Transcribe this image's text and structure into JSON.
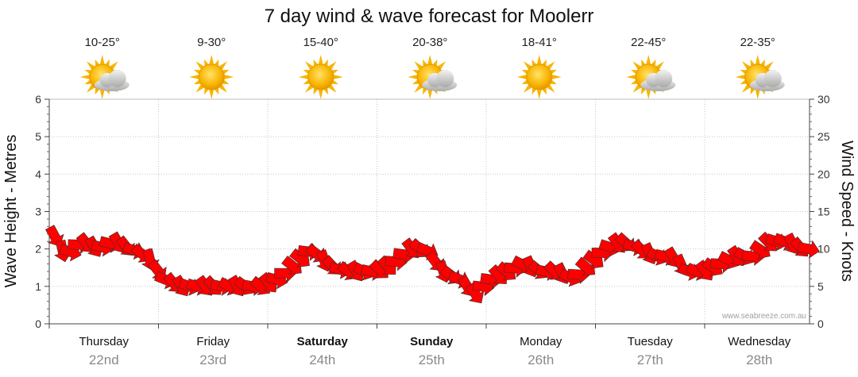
{
  "chart_data": {
    "type": "line",
    "title": "7 day wind & wave forecast for Moolerr",
    "ylabel_left": "Wave Height - Metres",
    "ylabel_right": "Wind Speed - Knots",
    "ylim_left": [
      0,
      6
    ],
    "ylim_right": [
      0,
      30
    ],
    "yticks_left": [
      "0",
      "1",
      "2",
      "3",
      "4",
      "5",
      "6"
    ],
    "yticks_right": [
      "0",
      "5",
      "10",
      "15",
      "20",
      "25",
      "30"
    ],
    "watermark": "www.seabreeze.com.au",
    "days": [
      {
        "name": "Thursday",
        "date": "22nd",
        "temp": "10-25°",
        "icon": "partly-cloudy-icon",
        "bold": false
      },
      {
        "name": "Friday",
        "date": "23rd",
        "temp": "9-30°",
        "icon": "sunny-icon",
        "bold": false
      },
      {
        "name": "Saturday",
        "date": "24th",
        "temp": "15-40°",
        "icon": "sunny-icon",
        "bold": true
      },
      {
        "name": "Sunday",
        "date": "25th",
        "temp": "20-38°",
        "icon": "partly-cloudy-icon",
        "bold": true
      },
      {
        "name": "Monday",
        "date": "26th",
        "temp": "18-41°",
        "icon": "sunny-icon",
        "bold": false
      },
      {
        "name": "Tuesday",
        "date": "27th",
        "temp": "22-45°",
        "icon": "partly-cloudy-icon",
        "bold": false
      },
      {
        "name": "Wednesday",
        "date": "28th",
        "temp": "22-35°",
        "icon": "partly-cloudy-icon",
        "bold": false
      }
    ],
    "series": [
      {
        "name": "Wind speed",
        "unit": "knots",
        "x_days": [
          0.0,
          0.15,
          0.3,
          0.45,
          0.6,
          0.75,
          0.9,
          1.05,
          1.2,
          1.35,
          1.5,
          1.65,
          1.8,
          1.95,
          2.1,
          2.25,
          2.4,
          2.55,
          2.7,
          2.85,
          3.0,
          3.15,
          3.3,
          3.45,
          3.6,
          3.75,
          3.9,
          4.05,
          4.2,
          4.35,
          4.5,
          4.65,
          4.8,
          4.95,
          5.1,
          5.25,
          5.4,
          5.55,
          5.7,
          5.85,
          6.0,
          6.15,
          6.3,
          6.45,
          6.6,
          6.75,
          6.9
        ],
        "values": [
          13,
          9,
          11,
          10,
          11,
          10,
          9,
          6,
          5,
          5,
          5,
          5,
          5,
          5,
          6,
          8,
          10,
          8,
          7,
          7,
          7,
          8,
          10,
          10,
          7,
          6,
          4,
          6,
          7,
          8,
          7,
          7,
          6,
          8,
          10,
          11,
          10,
          9,
          9,
          7,
          7,
          8,
          9,
          9,
          11,
          11,
          10
        ],
        "color_light": "#ff0000",
        "color_strong": "#ffff00"
      },
      {
        "name": "Wave height",
        "unit": "m",
        "x_days": [
          0,
          1,
          2,
          3,
          4,
          5,
          6,
          7
        ],
        "values": [
          0,
          0,
          0,
          0,
          0,
          0,
          0,
          0
        ]
      }
    ],
    "grid": true,
    "legend": "none"
  }
}
